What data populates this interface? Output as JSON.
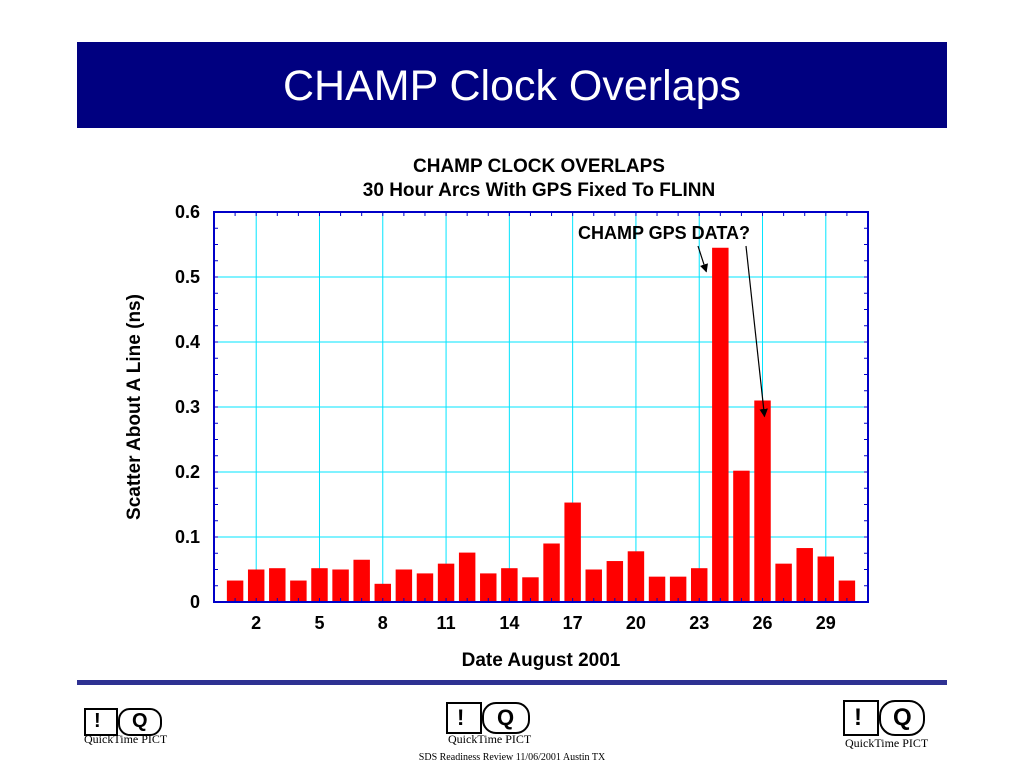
{
  "banner": {
    "title": "CHAMP Clock Overlaps"
  },
  "chart_data": {
    "type": "bar",
    "title": "CHAMP CLOCK OVERLAPS",
    "subtitle": "30 Hour Arcs With GPS Fixed To FLINN",
    "xlabel": "Date August 2001",
    "ylabel": "Scatter About A Line (ns)",
    "xlim": [
      0,
      31
    ],
    "ylim": [
      0,
      0.6
    ],
    "x_ticks": [
      2,
      5,
      8,
      11,
      14,
      17,
      20,
      23,
      26,
      29
    ],
    "y_ticks": [
      0,
      0.1,
      0.2,
      0.3,
      0.4,
      0.5,
      0.6
    ],
    "y_tick_labels": [
      "0",
      "0.1",
      "0.2",
      "0.3",
      "0.4",
      "0.5",
      "0.6"
    ],
    "grid": true,
    "bar_color": "#ff0000",
    "grid_color": "#00e5ff",
    "x": [
      1,
      2,
      3,
      4,
      5,
      6,
      7,
      8,
      9,
      10,
      11,
      12,
      13,
      14,
      15,
      16,
      17,
      18,
      19,
      20,
      21,
      22,
      23,
      24,
      25,
      26,
      27,
      28,
      29,
      30
    ],
    "values": [
      0.033,
      0.05,
      0.052,
      0.033,
      0.052,
      0.05,
      0.065,
      0.028,
      0.05,
      0.044,
      0.059,
      0.076,
      0.044,
      0.052,
      0.038,
      0.09,
      0.153,
      0.05,
      0.063,
      0.078,
      0.039,
      0.039,
      0.052,
      0.545,
      0.202,
      0.31,
      0.059,
      0.083,
      0.07,
      0.033
    ],
    "annotation": {
      "text": "CHAMP GPS DATA?",
      "targets": [
        24,
        26
      ]
    }
  },
  "footer": {
    "text": "SDS Readiness Review 11/06/2001 Austin TX"
  },
  "logos": {
    "caption": "QuickTime PICT",
    "glyph_left": "!",
    "glyph_right": "Q"
  }
}
